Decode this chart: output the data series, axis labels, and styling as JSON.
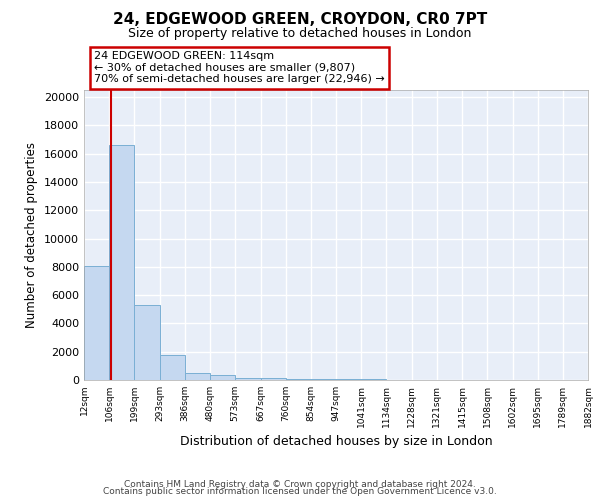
{
  "title": "24, EDGEWOOD GREEN, CROYDON, CR0 7PT",
  "subtitle": "Size of property relative to detached houses in London",
  "xlabel": "Distribution of detached houses by size in London",
  "ylabel": "Number of detached properties",
  "bar_values": [
    8050,
    16600,
    5300,
    1800,
    500,
    350,
    150,
    130,
    90,
    70,
    55,
    45,
    35,
    30,
    25,
    20,
    15,
    12,
    10,
    8
  ],
  "bin_edges": [
    12,
    106,
    199,
    293,
    386,
    480,
    573,
    667,
    760,
    854,
    947,
    1041,
    1134,
    1228,
    1321,
    1415,
    1508,
    1602,
    1695,
    1789,
    1882
  ],
  "x_tick_labels": [
    "12sqm",
    "106sqm",
    "199sqm",
    "293sqm",
    "386sqm",
    "480sqm",
    "573sqm",
    "667sqm",
    "760sqm",
    "854sqm",
    "947sqm",
    "1041sqm",
    "1134sqm",
    "1228sqm",
    "1321sqm",
    "1415sqm",
    "1508sqm",
    "1602sqm",
    "1695sqm",
    "1789sqm",
    "1882sqm"
  ],
  "bar_color": "#c5d8f0",
  "bar_edge_color": "#7aafd4",
  "background_color": "#e8eef8",
  "grid_color": "#ffffff",
  "property_size": 114,
  "red_line_color": "#cc0000",
  "annotation_text": "24 EDGEWOOD GREEN: 114sqm\n← 30% of detached houses are smaller (9,807)\n70% of semi-detached houses are larger (22,946) →",
  "annotation_box_color": "#cc0000",
  "yticks": [
    0,
    2000,
    4000,
    6000,
    8000,
    10000,
    12000,
    14000,
    16000,
    18000,
    20000
  ],
  "ylim": [
    0,
    20500
  ],
  "footer_text1": "Contains HM Land Registry data © Crown copyright and database right 2024.",
  "footer_text2": "Contains public sector information licensed under the Open Government Licence v3.0."
}
